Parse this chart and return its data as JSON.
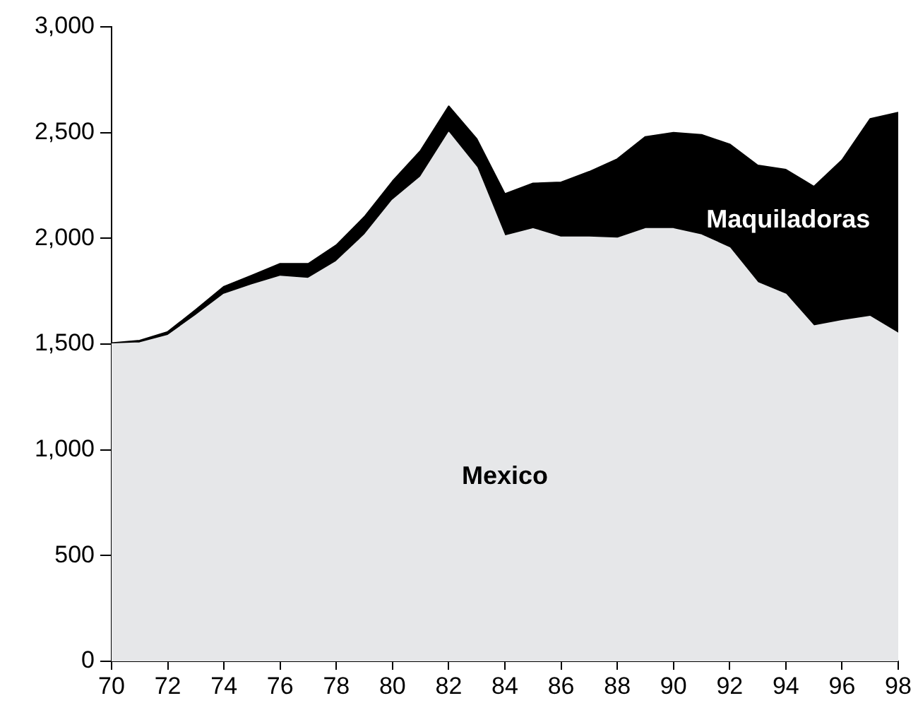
{
  "chart_data": {
    "type": "area",
    "stacked": true,
    "legend": false,
    "grid": false,
    "x": [
      70,
      71,
      72,
      73,
      74,
      75,
      76,
      77,
      78,
      79,
      80,
      81,
      82,
      83,
      84,
      85,
      86,
      87,
      88,
      89,
      90,
      91,
      92,
      93,
      94,
      95,
      96,
      97,
      98
    ],
    "series": [
      {
        "name": "Mexico",
        "color": "#e6e7e9",
        "values": [
          1500,
          1505,
          1540,
          1635,
          1735,
          1780,
          1820,
          1810,
          1890,
          2015,
          2180,
          2290,
          2500,
          2335,
          2010,
          2045,
          2005,
          2005,
          2000,
          2045,
          2045,
          2015,
          1955,
          1790,
          1735,
          1585,
          1610,
          1630,
          1550
        ]
      },
      {
        "name": "Maquiladoras",
        "color": "#000000",
        "values": [
          5,
          12,
          18,
          28,
          37,
          45,
          60,
          70,
          78,
          87,
          90,
          125,
          125,
          135,
          200,
          215,
          260,
          310,
          375,
          435,
          455,
          475,
          490,
          555,
          590,
          660,
          760,
          935,
          1045
        ]
      }
    ],
    "xlim": [
      70,
      98
    ],
    "xticks": [
      70,
      72,
      74,
      76,
      78,
      80,
      82,
      84,
      86,
      88,
      90,
      92,
      94,
      96,
      98
    ],
    "ylim": [
      0,
      3000
    ],
    "yticks": [
      0,
      {
        "value": 500,
        "label": "500"
      },
      {
        "value": 1000,
        "label": "1,000"
      },
      {
        "value": 1500,
        "label": "1,500"
      },
      {
        "value": 2000,
        "label": "2,000"
      },
      {
        "value": 2500,
        "label": "2,500"
      },
      {
        "value": 3000,
        "label": "3,000"
      }
    ]
  }
}
